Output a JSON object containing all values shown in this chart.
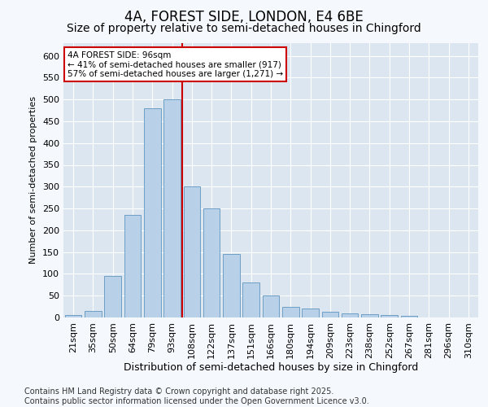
{
  "title1": "4A, FOREST SIDE, LONDON, E4 6BE",
  "title2": "Size of property relative to semi-detached houses in Chingford",
  "xlabel": "Distribution of semi-detached houses by size in Chingford",
  "ylabel": "Number of semi-detached properties",
  "categories": [
    "21sqm",
    "35sqm",
    "50sqm",
    "64sqm",
    "79sqm",
    "93sqm",
    "108sqm",
    "122sqm",
    "137sqm",
    "151sqm",
    "166sqm",
    "180sqm",
    "194sqm",
    "209sqm",
    "223sqm",
    "238sqm",
    "252sqm",
    "267sqm",
    "281sqm",
    "296sqm",
    "310sqm"
  ],
  "values": [
    5,
    15,
    95,
    235,
    480,
    500,
    300,
    250,
    145,
    80,
    50,
    25,
    20,
    13,
    10,
    8,
    5,
    3,
    0,
    0,
    0
  ],
  "bar_color": "#b8d0e8",
  "bar_edge_color": "#6e9fc5",
  "property_label": "4A FOREST SIDE: 96sqm",
  "annotation_smaller": "← 41% of semi-detached houses are smaller (917)",
  "annotation_larger": "57% of semi-detached houses are larger (1,271) →",
  "annotation_box_color": "#ffffff",
  "annotation_box_edge": "#cc0000",
  "line_color": "#cc0000",
  "footer1": "Contains HM Land Registry data © Crown copyright and database right 2025.",
  "footer2": "Contains public sector information licensed under the Open Government Licence v3.0.",
  "ylim": [
    0,
    630
  ],
  "yticks": [
    0,
    50,
    100,
    150,
    200,
    250,
    300,
    350,
    400,
    450,
    500,
    550,
    600
  ],
  "fig_bg_color": "#f5f8fc",
  "plot_bg_color": "#dce6f0",
  "title1_fontsize": 12,
  "title2_fontsize": 10,
  "xlabel_fontsize": 9,
  "ylabel_fontsize": 8,
  "tick_fontsize": 8,
  "footer_fontsize": 7,
  "line_x_index": 5.5
}
